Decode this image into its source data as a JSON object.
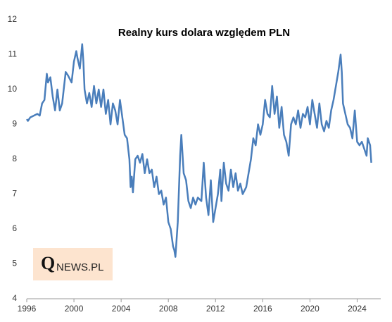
{
  "chart_data": {
    "type": "line",
    "title": "Realny kurs dolara względem PLN",
    "watermark_initial": "Q",
    "watermark_rest": "NEWS.PL",
    "xlim": [
      1996,
      2026
    ],
    "xticks": [
      1996,
      2000,
      2004,
      2008,
      2012,
      2016,
      2020,
      2024
    ],
    "ylim": [
      4,
      12
    ],
    "yticks": [
      4,
      5,
      6,
      7,
      8,
      9,
      10,
      11,
      12
    ],
    "grid": false,
    "series": [
      {
        "color": "#4a7ebb",
        "x": [
          1996.0,
          1996.1,
          1996.3,
          1996.6,
          1996.9,
          1997.1,
          1997.3,
          1997.5,
          1997.7,
          1997.8,
          1998.0,
          1998.2,
          1998.4,
          1998.6,
          1998.8,
          1999.0,
          1999.3,
          1999.5,
          1999.8,
          2000.0,
          2000.2,
          2000.3,
          2000.5,
          2000.7,
          2000.8,
          2000.9,
          2001.1,
          2001.3,
          2001.5,
          2001.7,
          2001.9,
          2002.1,
          2002.3,
          2002.5,
          2002.7,
          2002.9,
          2003.1,
          2003.3,
          2003.5,
          2003.7,
          2003.9,
          2004.1,
          2004.3,
          2004.5,
          2004.7,
          2004.8,
          2004.9,
          2005.0,
          2005.2,
          2005.4,
          2005.6,
          2005.8,
          2006.0,
          2006.2,
          2006.4,
          2006.6,
          2006.8,
          2007.0,
          2007.2,
          2007.4,
          2007.6,
          2007.8,
          2008.0,
          2008.2,
          2008.4,
          2008.5,
          2008.6,
          2008.8,
          2009.0,
          2009.1,
          2009.3,
          2009.5,
          2009.7,
          2009.9,
          2010.1,
          2010.3,
          2010.5,
          2010.8,
          2011.0,
          2011.2,
          2011.4,
          2011.6,
          2011.8,
          2012.0,
          2012.2,
          2012.4,
          2012.5,
          2012.7,
          2012.9,
          2013.1,
          2013.3,
          2013.5,
          2013.7,
          2013.9,
          2014.1,
          2014.3,
          2014.6,
          2014.8,
          2015.0,
          2015.2,
          2015.4,
          2015.6,
          2015.8,
          2016.0,
          2016.2,
          2016.4,
          2016.6,
          2016.8,
          2017.0,
          2017.2,
          2017.4,
          2017.6,
          2017.8,
          2018.0,
          2018.2,
          2018.4,
          2018.6,
          2018.8,
          2019.0,
          2019.2,
          2019.4,
          2019.6,
          2019.8,
          2020.0,
          2020.2,
          2020.4,
          2020.6,
          2020.8,
          2021.0,
          2021.2,
          2021.4,
          2021.6,
          2021.8,
          2022.0,
          2022.2,
          2022.4,
          2022.6,
          2022.7,
          2022.8,
          2023.0,
          2023.2,
          2023.4,
          2023.6,
          2023.8,
          2024.0,
          2024.2,
          2024.4,
          2024.6,
          2024.8,
          2024.9,
          2025.1,
          2025.2
        ],
        "values": [
          9.15,
          9.1,
          9.2,
          9.25,
          9.3,
          9.25,
          9.6,
          9.7,
          10.45,
          10.2,
          10.35,
          9.8,
          9.4,
          10.0,
          9.4,
          9.6,
          10.5,
          10.4,
          10.2,
          10.8,
          11.1,
          10.9,
          10.6,
          11.3,
          10.8,
          10.0,
          9.6,
          9.9,
          9.5,
          10.1,
          9.6,
          10.0,
          9.5,
          10.0,
          9.3,
          9.7,
          9.0,
          9.6,
          9.4,
          9.0,
          9.7,
          9.2,
          8.7,
          8.6,
          8.0,
          7.2,
          7.5,
          7.05,
          8.0,
          8.1,
          7.9,
          8.15,
          7.6,
          8.0,
          7.6,
          7.7,
          7.2,
          7.5,
          7.0,
          7.1,
          6.7,
          6.9,
          6.2,
          6.0,
          5.5,
          5.4,
          5.2,
          6.2,
          8.1,
          8.7,
          7.6,
          7.4,
          6.8,
          6.6,
          6.9,
          6.7,
          6.9,
          6.8,
          7.9,
          6.9,
          6.4,
          7.4,
          6.2,
          6.6,
          7.0,
          7.7,
          6.8,
          7.9,
          7.3,
          7.1,
          7.7,
          7.2,
          7.6,
          7.1,
          7.3,
          7.0,
          7.2,
          7.6,
          8.0,
          8.6,
          8.4,
          9.0,
          8.7,
          9.0,
          9.7,
          9.3,
          9.2,
          10.1,
          9.3,
          9.8,
          8.9,
          9.5,
          8.7,
          8.5,
          8.1,
          9.0,
          9.2,
          9.0,
          9.4,
          8.9,
          9.3,
          9.2,
          9.5,
          9.0,
          9.7,
          9.3,
          8.9,
          9.6,
          9.0,
          8.8,
          9.1,
          8.9,
          9.4,
          9.7,
          10.1,
          10.5,
          11.0,
          10.5,
          9.6,
          9.3,
          9.0,
          8.9,
          8.6,
          9.4,
          8.5,
          8.4,
          8.5,
          8.3,
          8.1,
          8.6,
          8.4,
          7.9
        ]
      }
    ]
  }
}
